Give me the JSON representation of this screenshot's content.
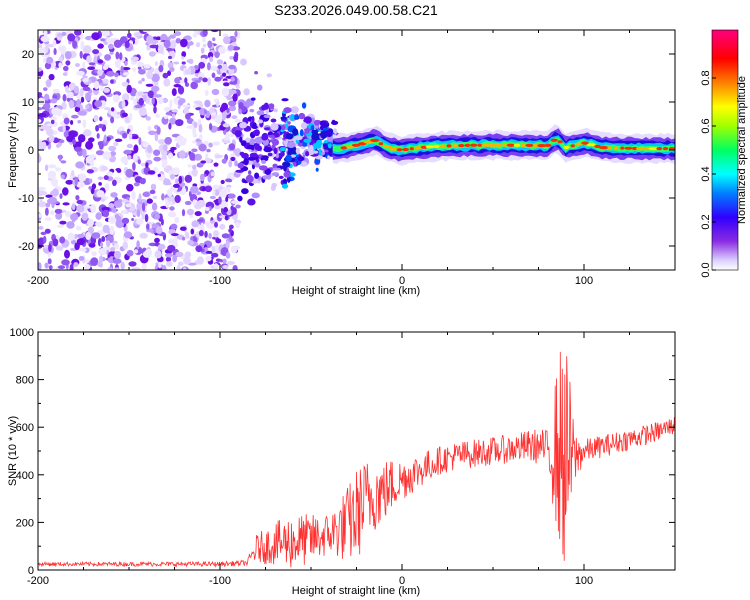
{
  "title": "S233.2026.049.00.58.C21",
  "chart_data": [
    {
      "type": "heatmap",
      "name": "spectrogram",
      "xlabel": "Height of straight line (km)",
      "ylabel": "Frequency (Hz)",
      "xlim": [
        -200,
        150
      ],
      "ylim": [
        -25,
        25
      ],
      "xticks": [
        -200,
        -100,
        0,
        100
      ],
      "yticks": [
        -20,
        -10,
        0,
        10,
        20
      ],
      "colorbar": {
        "label": "Normalized spectral amplitude",
        "range": [
          0,
          1
        ],
        "ticks": [
          "0.0",
          "0.2",
          "0.4",
          "0.6",
          "0.8"
        ],
        "tick_values": [
          0,
          0.2,
          0.4,
          0.6,
          0.8
        ],
        "colors": [
          "#ffffff",
          "#7f00ff",
          "#0000ff",
          "#00ffff",
          "#00ff00",
          "#ffff00",
          "#ff7f00",
          "#ff0000",
          "#ff00aa"
        ]
      },
      "regions": [
        {
          "x_range": [
            -200,
            -90
          ],
          "freq_range": [
            -25,
            25
          ],
          "description": "broadband noise",
          "amplitude_range": [
            0.0,
            0.2
          ]
        },
        {
          "x_range": [
            -90,
            -35
          ],
          "freq_range": [
            -12,
            12
          ],
          "description": "transition",
          "amplitude_range": [
            0.05,
            0.45
          ]
        },
        {
          "x_range": [
            -35,
            150
          ],
          "freq_center": 0.5,
          "freq_halfwidth": 2,
          "description": "narrowband carrier",
          "amplitude_range": [
            0.2,
            1.0
          ]
        }
      ],
      "carrier_trace": {
        "x": [
          -40,
          -30,
          -20,
          -15,
          -10,
          -5,
          0,
          10,
          20,
          40,
          60,
          80,
          85,
          90,
          100,
          110,
          130,
          150
        ],
        "freq": [
          0.2,
          0.5,
          1.5,
          2.0,
          1.0,
          0.2,
          0.0,
          0.5,
          0.8,
          1.0,
          1.0,
          0.9,
          2.5,
          0.5,
          1.5,
          0.5,
          0.3,
          0.3
        ]
      }
    },
    {
      "type": "line",
      "name": "snr",
      "xlabel": "Height of straight line (km)",
      "ylabel": "SNR (10 * v/v)",
      "xlim": [
        -200,
        150
      ],
      "ylim": [
        0,
        1000
      ],
      "xticks": [
        -200,
        -100,
        0,
        100
      ],
      "yticks": [
        0,
        200,
        400,
        600,
        800,
        1000
      ],
      "color": "#ff3030",
      "series": [
        {
          "name": "SNR",
          "baseline_points": {
            "x": [
              -200,
              -150,
              -100,
              -85,
              -80,
              -70,
              -60,
              -50,
              -40,
              -30,
              -25,
              -20,
              -15,
              -10,
              -5,
              0,
              10,
              20,
              30,
              40,
              50,
              60,
              70,
              75,
              80,
              85,
              90,
              95,
              100,
              110,
              120,
              130,
              140,
              150
            ],
            "y": [
              25,
              25,
              25,
              30,
              90,
              110,
              120,
              130,
              150,
              190,
              230,
              290,
              320,
              330,
              360,
              380,
              420,
              460,
              480,
              490,
              500,
              510,
              520,
              520,
              510,
              500,
              480,
              470,
              500,
              520,
              540,
              560,
              580,
              610
            ]
          },
          "noise_amplitude_points": {
            "x": [
              -200,
              -100,
              -85,
              -80,
              -60,
              -40,
              -25,
              -15,
              0,
              20,
              60,
              80,
              85,
              88,
              90,
              92,
              95,
              100,
              150
            ],
            "a": [
              8,
              10,
              12,
              60,
              120,
              90,
              200,
              160,
              90,
              60,
              60,
              80,
              350,
              500,
              480,
              350,
              120,
              50,
              40
            ]
          }
        }
      ]
    }
  ]
}
